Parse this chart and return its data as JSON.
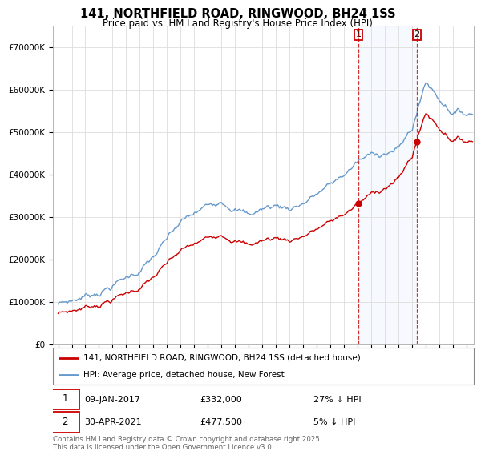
{
  "title": "141, NORTHFIELD ROAD, RINGWOOD, BH24 1SS",
  "subtitle": "Price paid vs. HM Land Registry's House Price Index (HPI)",
  "hpi_label": "HPI: Average price, detached house, New Forest",
  "property_label": "141, NORTHFIELD ROAD, RINGWOOD, BH24 1SS (detached house)",
  "sale1_date": "09-JAN-2017",
  "sale1_price": 332000,
  "sale1_note": "27% ↓ HPI",
  "sale2_date": "30-APR-2021",
  "sale2_price": 477500,
  "sale2_note": "5% ↓ HPI",
  "footer": "Contains HM Land Registry data © Crown copyright and database right 2025.\nThis data is licensed under the Open Government Licence v3.0.",
  "property_color": "#cc0000",
  "hpi_color": "#6699cc",
  "annotation_color": "#cc0000",
  "background_color": "#ffffff",
  "ylim": [
    0,
    750000
  ],
  "yticks": [
    0,
    100000,
    200000,
    300000,
    400000,
    500000,
    600000,
    700000
  ]
}
